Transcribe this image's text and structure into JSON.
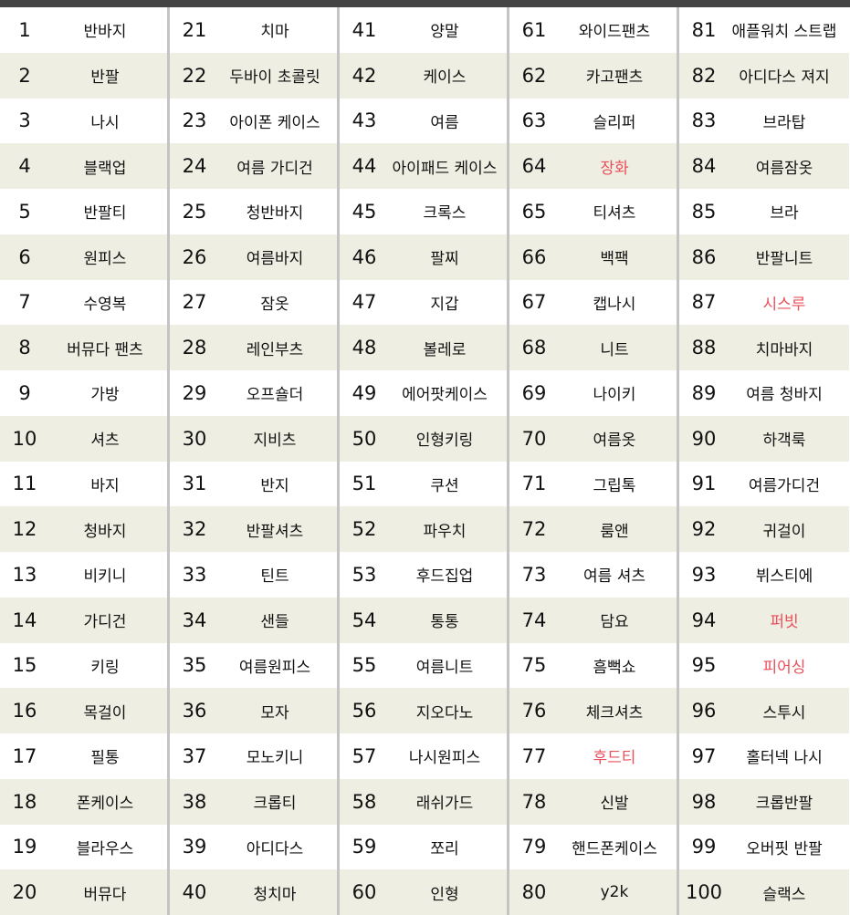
{
  "highlight_color": "#e8505b",
  "rows_color_alt": "#eeeee2",
  "items": [
    {
      "rank": "1",
      "keyword": "반바지"
    },
    {
      "rank": "2",
      "keyword": "반팔"
    },
    {
      "rank": "3",
      "keyword": "나시"
    },
    {
      "rank": "4",
      "keyword": "블랙업"
    },
    {
      "rank": "5",
      "keyword": "반팔티"
    },
    {
      "rank": "6",
      "keyword": "원피스"
    },
    {
      "rank": "7",
      "keyword": "수영복"
    },
    {
      "rank": "8",
      "keyword": "버뮤다 팬츠"
    },
    {
      "rank": "9",
      "keyword": "가방"
    },
    {
      "rank": "10",
      "keyword": "셔츠"
    },
    {
      "rank": "11",
      "keyword": "바지"
    },
    {
      "rank": "12",
      "keyword": "청바지"
    },
    {
      "rank": "13",
      "keyword": "비키니"
    },
    {
      "rank": "14",
      "keyword": "가디건"
    },
    {
      "rank": "15",
      "keyword": "키링"
    },
    {
      "rank": "16",
      "keyword": "목걸이"
    },
    {
      "rank": "17",
      "keyword": "필통"
    },
    {
      "rank": "18",
      "keyword": "폰케이스"
    },
    {
      "rank": "19",
      "keyword": "블라우스"
    },
    {
      "rank": "20",
      "keyword": "버뮤다"
    },
    {
      "rank": "21",
      "keyword": "치마"
    },
    {
      "rank": "22",
      "keyword": "두바이 초콜릿"
    },
    {
      "rank": "23",
      "keyword": "아이폰 케이스"
    },
    {
      "rank": "24",
      "keyword": "여름 가디건"
    },
    {
      "rank": "25",
      "keyword": "청반바지"
    },
    {
      "rank": "26",
      "keyword": "여름바지"
    },
    {
      "rank": "27",
      "keyword": "잠옷"
    },
    {
      "rank": "28",
      "keyword": "레인부츠"
    },
    {
      "rank": "29",
      "keyword": "오프숄더"
    },
    {
      "rank": "30",
      "keyword": "지비츠"
    },
    {
      "rank": "31",
      "keyword": "반지"
    },
    {
      "rank": "32",
      "keyword": "반팔셔츠"
    },
    {
      "rank": "33",
      "keyword": "틴트"
    },
    {
      "rank": "34",
      "keyword": "샌들"
    },
    {
      "rank": "35",
      "keyword": "여름원피스"
    },
    {
      "rank": "36",
      "keyword": "모자"
    },
    {
      "rank": "37",
      "keyword": "모노키니"
    },
    {
      "rank": "38",
      "keyword": "크롭티"
    },
    {
      "rank": "39",
      "keyword": "아디다스"
    },
    {
      "rank": "40",
      "keyword": "청치마"
    },
    {
      "rank": "41",
      "keyword": "양말"
    },
    {
      "rank": "42",
      "keyword": "케이스"
    },
    {
      "rank": "43",
      "keyword": "여름"
    },
    {
      "rank": "44",
      "keyword": "아이패드 케이스"
    },
    {
      "rank": "45",
      "keyword": "크록스"
    },
    {
      "rank": "46",
      "keyword": "팔찌"
    },
    {
      "rank": "47",
      "keyword": "지갑"
    },
    {
      "rank": "48",
      "keyword": "볼레로"
    },
    {
      "rank": "49",
      "keyword": "에어팟케이스"
    },
    {
      "rank": "50",
      "keyword": "인형키링"
    },
    {
      "rank": "51",
      "keyword": "쿠션"
    },
    {
      "rank": "52",
      "keyword": "파우치"
    },
    {
      "rank": "53",
      "keyword": "후드집업"
    },
    {
      "rank": "54",
      "keyword": "통통"
    },
    {
      "rank": "55",
      "keyword": "여름니트"
    },
    {
      "rank": "56",
      "keyword": "지오다노"
    },
    {
      "rank": "57",
      "keyword": "나시원피스"
    },
    {
      "rank": "58",
      "keyword": "래쉬가드"
    },
    {
      "rank": "59",
      "keyword": "쪼리"
    },
    {
      "rank": "60",
      "keyword": "인형"
    },
    {
      "rank": "61",
      "keyword": "와이드팬츠"
    },
    {
      "rank": "62",
      "keyword": "카고팬츠"
    },
    {
      "rank": "63",
      "keyword": "슬리퍼"
    },
    {
      "rank": "64",
      "keyword": "장화",
      "highlight": true
    },
    {
      "rank": "65",
      "keyword": "티셔츠"
    },
    {
      "rank": "66",
      "keyword": "백팩"
    },
    {
      "rank": "67",
      "keyword": "캡나시"
    },
    {
      "rank": "68",
      "keyword": "니트"
    },
    {
      "rank": "69",
      "keyword": "나이키"
    },
    {
      "rank": "70",
      "keyword": "여름옷"
    },
    {
      "rank": "71",
      "keyword": "그립톡"
    },
    {
      "rank": "72",
      "keyword": "룸앤"
    },
    {
      "rank": "73",
      "keyword": "여름 셔츠"
    },
    {
      "rank": "74",
      "keyword": "담요"
    },
    {
      "rank": "75",
      "keyword": "흠뻑쇼"
    },
    {
      "rank": "76",
      "keyword": "체크셔츠"
    },
    {
      "rank": "77",
      "keyword": "후드티",
      "highlight": true
    },
    {
      "rank": "78",
      "keyword": "신발"
    },
    {
      "rank": "79",
      "keyword": "핸드폰케이스"
    },
    {
      "rank": "80",
      "keyword": "y2k"
    },
    {
      "rank": "81",
      "keyword": "애플워치 스트랩"
    },
    {
      "rank": "82",
      "keyword": "아디다스 져지"
    },
    {
      "rank": "83",
      "keyword": "브라탑"
    },
    {
      "rank": "84",
      "keyword": "여름잠옷"
    },
    {
      "rank": "85",
      "keyword": "브라"
    },
    {
      "rank": "86",
      "keyword": "반팔니트"
    },
    {
      "rank": "87",
      "keyword": "시스루",
      "highlight": true
    },
    {
      "rank": "88",
      "keyword": "치마바지"
    },
    {
      "rank": "89",
      "keyword": "여름 청바지"
    },
    {
      "rank": "90",
      "keyword": "하객룩"
    },
    {
      "rank": "91",
      "keyword": "여름가디건"
    },
    {
      "rank": "92",
      "keyword": "귀걸이"
    },
    {
      "rank": "93",
      "keyword": "뷔스티에"
    },
    {
      "rank": "94",
      "keyword": "퍼빗",
      "highlight": true
    },
    {
      "rank": "95",
      "keyword": "피어싱",
      "highlight": true
    },
    {
      "rank": "96",
      "keyword": "스투시"
    },
    {
      "rank": "97",
      "keyword": "홀터넥 나시"
    },
    {
      "rank": "98",
      "keyword": "크롭반팔"
    },
    {
      "rank": "99",
      "keyword": "오버핏 반팔"
    },
    {
      "rank": "100",
      "keyword": "슬랙스"
    }
  ]
}
